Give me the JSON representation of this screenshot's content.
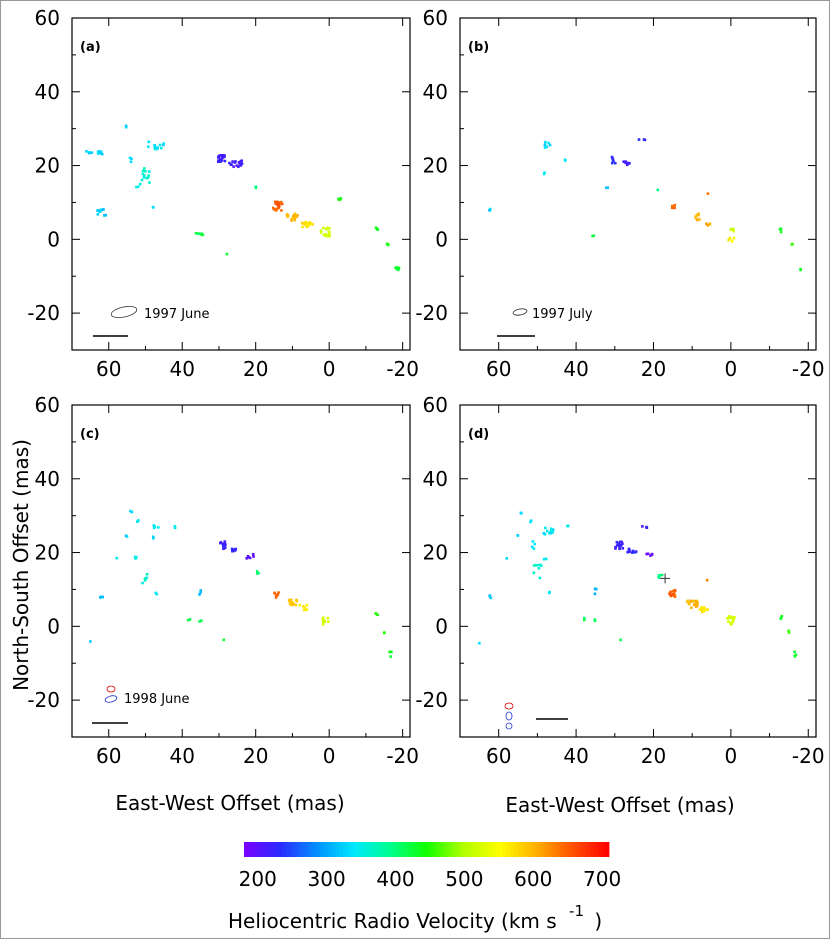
{
  "figure": {
    "ylabel": "North-South Offset (mas)",
    "xlabel": "East-West Offset (mas)",
    "colorbar_title": "Heliocentric Radio Velocity (km s",
    "colorbar_title_exp": "-1",
    "colorbar_title_close": ")"
  },
  "chart_data": {
    "type": "scatter",
    "xlim": [
      70,
      -22
    ],
    "ylim": [
      -30,
      60
    ],
    "xticks": [
      "60",
      "40",
      "20",
      "0",
      "-20"
    ],
    "xtick_values": [
      60,
      40,
      20,
      0,
      -20
    ],
    "yticks": [
      "60",
      "40",
      "20",
      "0",
      "-20"
    ],
    "ytick_values": [
      60,
      40,
      20,
      0,
      -20
    ],
    "colorbar": {
      "vmin": 180,
      "vmax": 710,
      "ticks": [
        "200",
        "300",
        "400",
        "500",
        "600",
        "700"
      ],
      "tick_values": [
        200,
        300,
        400,
        500,
        600,
        700
      ],
      "colors": [
        "#7a00ff",
        "#2a2aff",
        "#0090ff",
        "#00e8ff",
        "#00ff90",
        "#10ff00",
        "#b0ff00",
        "#ffff00",
        "#ffb000",
        "#ff5000",
        "#ff0000"
      ]
    },
    "panels": [
      {
        "label": "(a)",
        "epoch": "1997  June",
        "beam": "ellipse",
        "clusters": [
          {
            "x": 64,
            "y": 23.5,
            "v": 330,
            "n": 10,
            "sx": 2.4,
            "sy": 0.4
          },
          {
            "x": 55,
            "y": 30.5,
            "v": 330,
            "n": 2,
            "sx": 0.3,
            "sy": 0.3
          },
          {
            "x": 47,
            "y": 25.5,
            "v": 340,
            "n": 14,
            "sx": 2.5,
            "sy": 1.2
          },
          {
            "x": 50,
            "y": 17.5,
            "v": 360,
            "n": 12,
            "sx": 1.2,
            "sy": 2.2
          },
          {
            "x": 54,
            "y": 21.5,
            "v": 340,
            "n": 3,
            "sx": 0.4,
            "sy": 0.6
          },
          {
            "x": 48,
            "y": 8.5,
            "v": 340,
            "n": 2,
            "sx": 0.4,
            "sy": 0.4
          },
          {
            "x": 52,
            "y": 14.5,
            "v": 350,
            "n": 3,
            "sx": 0.6,
            "sy": 0.6
          },
          {
            "x": 62,
            "y": 7.5,
            "v": 320,
            "n": 10,
            "sx": 1.2,
            "sy": 1.3
          },
          {
            "x": 29,
            "y": 22,
            "v": 220,
            "n": 18,
            "sx": 1.4,
            "sy": 1.0
          },
          {
            "x": 25.5,
            "y": 20.5,
            "v": 220,
            "n": 16,
            "sx": 1.8,
            "sy": 0.9
          },
          {
            "x": 20,
            "y": 14,
            "v": 400,
            "n": 3,
            "sx": 0.3,
            "sy": 0.4
          },
          {
            "x": 35.5,
            "y": 1.5,
            "v": 420,
            "n": 6,
            "sx": 1.3,
            "sy": 0.3
          },
          {
            "x": 14,
            "y": 9,
            "v": 650,
            "n": 18,
            "sx": 1.3,
            "sy": 1.3
          },
          {
            "x": 10,
            "y": 6,
            "v": 600,
            "n": 16,
            "sx": 1.5,
            "sy": 1.0
          },
          {
            "x": 6,
            "y": 4,
            "v": 570,
            "n": 16,
            "sx": 1.5,
            "sy": 0.7
          },
          {
            "x": 1,
            "y": 2,
            "v": 520,
            "n": 16,
            "sx": 1.3,
            "sy": 1.2
          },
          {
            "x": -3,
            "y": 11,
            "v": 440,
            "n": 4,
            "sx": 0.5,
            "sy": 0.4
          },
          {
            "x": -13,
            "y": 3,
            "v": 440,
            "n": 3,
            "sx": 0.4,
            "sy": 0.5
          },
          {
            "x": -16,
            "y": -1.5,
            "v": 450,
            "n": 2,
            "sx": 0.3,
            "sy": 0.3
          },
          {
            "x": -18.5,
            "y": -8,
            "v": 430,
            "n": 6,
            "sx": 0.5,
            "sy": 0.6
          },
          {
            "x": 28,
            "y": -4,
            "v": 430,
            "n": 1,
            "sx": 0.2,
            "sy": 0.2
          }
        ]
      },
      {
        "label": "(b)",
        "epoch": "1997  July",
        "beam": "small",
        "clusters": [
          {
            "x": 47,
            "y": 25.5,
            "v": 330,
            "n": 8,
            "sx": 1.2,
            "sy": 1.0
          },
          {
            "x": 43,
            "y": 21.5,
            "v": 330,
            "n": 2,
            "sx": 0.3,
            "sy": 0.3
          },
          {
            "x": 48,
            "y": 18,
            "v": 340,
            "n": 2,
            "sx": 0.3,
            "sy": 0.3
          },
          {
            "x": 62,
            "y": 8,
            "v": 320,
            "n": 3,
            "sx": 0.4,
            "sy": 0.3
          },
          {
            "x": 30,
            "y": 21.5,
            "v": 230,
            "n": 6,
            "sx": 0.8,
            "sy": 1.0
          },
          {
            "x": 27,
            "y": 20.5,
            "v": 220,
            "n": 6,
            "sx": 0.8,
            "sy": 0.6
          },
          {
            "x": 23,
            "y": 27,
            "v": 220,
            "n": 3,
            "sx": 0.8,
            "sy": 0.3
          },
          {
            "x": 32,
            "y": 14,
            "v": 310,
            "n": 2,
            "sx": 0.3,
            "sy": 0.3
          },
          {
            "x": 35.5,
            "y": 1,
            "v": 420,
            "n": 2,
            "sx": 0.3,
            "sy": 0.3
          },
          {
            "x": 19,
            "y": 13.5,
            "v": 400,
            "n": 1,
            "sx": 0.2,
            "sy": 0.2
          },
          {
            "x": 15,
            "y": 9,
            "v": 650,
            "n": 6,
            "sx": 0.8,
            "sy": 0.5
          },
          {
            "x": 9,
            "y": 6,
            "v": 600,
            "n": 8,
            "sx": 1.0,
            "sy": 1.0
          },
          {
            "x": 6,
            "y": 4,
            "v": 610,
            "n": 4,
            "sx": 0.8,
            "sy": 0.5
          },
          {
            "x": 6,
            "y": 12.5,
            "v": 630,
            "n": 1,
            "sx": 0.2,
            "sy": 0.2
          },
          {
            "x": 0,
            "y": 0,
            "v": 560,
            "n": 6,
            "sx": 0.8,
            "sy": 0.6
          },
          {
            "x": 0,
            "y": 2.5,
            "v": 520,
            "n": 4,
            "sx": 0.8,
            "sy": 0.4
          },
          {
            "x": -13,
            "y": 2.5,
            "v": 440,
            "n": 3,
            "sx": 0.4,
            "sy": 0.5
          },
          {
            "x": -16,
            "y": -1.5,
            "v": 450,
            "n": 2,
            "sx": 0.3,
            "sy": 0.3
          },
          {
            "x": -18,
            "y": -8,
            "v": 430,
            "n": 2,
            "sx": 0.3,
            "sy": 0.4
          }
        ]
      },
      {
        "label": "(c)",
        "epoch": "1998  June",
        "beam": "double",
        "clusters": [
          {
            "x": 54,
            "y": 31,
            "v": 340,
            "n": 2,
            "sx": 0.3,
            "sy": 0.4
          },
          {
            "x": 52,
            "y": 28.5,
            "v": 340,
            "n": 2,
            "sx": 0.4,
            "sy": 0.3
          },
          {
            "x": 47,
            "y": 27,
            "v": 340,
            "n": 4,
            "sx": 0.8,
            "sy": 0.5
          },
          {
            "x": 42,
            "y": 27,
            "v": 340,
            "n": 2,
            "sx": 0.3,
            "sy": 0.3
          },
          {
            "x": 48,
            "y": 24,
            "v": 330,
            "n": 2,
            "sx": 0.3,
            "sy": 0.3
          },
          {
            "x": 55,
            "y": 24.5,
            "v": 330,
            "n": 2,
            "sx": 0.3,
            "sy": 0.3
          },
          {
            "x": 52,
            "y": 18.5,
            "v": 350,
            "n": 4,
            "sx": 1.0,
            "sy": 0.5
          },
          {
            "x": 50,
            "y": 13.5,
            "v": 360,
            "n": 6,
            "sx": 1.0,
            "sy": 2.0
          },
          {
            "x": 47,
            "y": 9,
            "v": 340,
            "n": 2,
            "sx": 0.4,
            "sy": 0.3
          },
          {
            "x": 58,
            "y": 18.5,
            "v": 340,
            "n": 1,
            "sx": 0.2,
            "sy": 0.2
          },
          {
            "x": 62,
            "y": 8,
            "v": 320,
            "n": 3,
            "sx": 0.4,
            "sy": 0.6
          },
          {
            "x": 65,
            "y": -4,
            "v": 330,
            "n": 1,
            "sx": 0.2,
            "sy": 0.2
          },
          {
            "x": 35,
            "y": 9,
            "v": 310,
            "n": 3,
            "sx": 0.3,
            "sy": 1.3
          },
          {
            "x": 38,
            "y": 2,
            "v": 410,
            "n": 2,
            "sx": 0.4,
            "sy": 0.3
          },
          {
            "x": 35,
            "y": 1.5,
            "v": 420,
            "n": 2,
            "sx": 0.3,
            "sy": 0.3
          },
          {
            "x": 29,
            "y": 22,
            "v": 220,
            "n": 12,
            "sx": 0.9,
            "sy": 1.0
          },
          {
            "x": 26,
            "y": 20.5,
            "v": 230,
            "n": 6,
            "sx": 0.8,
            "sy": 0.5
          },
          {
            "x": 21.5,
            "y": 19,
            "v": 200,
            "n": 6,
            "sx": 1.0,
            "sy": 0.6
          },
          {
            "x": 19.5,
            "y": 14.5,
            "v": 400,
            "n": 3,
            "sx": 0.4,
            "sy": 0.6
          },
          {
            "x": 14.5,
            "y": 8.5,
            "v": 650,
            "n": 8,
            "sx": 0.8,
            "sy": 0.7
          },
          {
            "x": 10,
            "y": 6.5,
            "v": 590,
            "n": 12,
            "sx": 1.2,
            "sy": 0.8
          },
          {
            "x": 7,
            "y": 5,
            "v": 560,
            "n": 8,
            "sx": 1.0,
            "sy": 0.8
          },
          {
            "x": 1,
            "y": 1.5,
            "v": 520,
            "n": 10,
            "sx": 0.8,
            "sy": 1.0
          },
          {
            "x": 28.5,
            "y": -3.5,
            "v": 430,
            "n": 1,
            "sx": 0.2,
            "sy": 0.2
          },
          {
            "x": -13,
            "y": 3,
            "v": 440,
            "n": 3,
            "sx": 0.4,
            "sy": 0.5
          },
          {
            "x": -15,
            "y": -1.5,
            "v": 450,
            "n": 2,
            "sx": 0.3,
            "sy": 0.3
          },
          {
            "x": -16.5,
            "y": -7.5,
            "v": 430,
            "n": 4,
            "sx": 0.5,
            "sy": 0.8
          }
        ]
      },
      {
        "label": "(d)",
        "epoch": "",
        "beam": "triple",
        "clusters": [
          {
            "x": 54,
            "y": 31,
            "v": 340,
            "n": 2,
            "sx": 0.3,
            "sy": 0.4
          },
          {
            "x": 52,
            "y": 28.5,
            "v": 340,
            "n": 2,
            "sx": 0.4,
            "sy": 0.3
          },
          {
            "x": 47,
            "y": 25.5,
            "v": 340,
            "n": 12,
            "sx": 1.5,
            "sy": 1.2
          },
          {
            "x": 42,
            "y": 27,
            "v": 340,
            "n": 2,
            "sx": 0.3,
            "sy": 0.3
          },
          {
            "x": 51,
            "y": 22,
            "v": 340,
            "n": 4,
            "sx": 0.5,
            "sy": 1.0
          },
          {
            "x": 55,
            "y": 24.5,
            "v": 330,
            "n": 2,
            "sx": 0.3,
            "sy": 0.3
          },
          {
            "x": 50,
            "y": 15,
            "v": 360,
            "n": 8,
            "sx": 1.2,
            "sy": 2.2
          },
          {
            "x": 47,
            "y": 9,
            "v": 340,
            "n": 2,
            "sx": 0.4,
            "sy": 0.3
          },
          {
            "x": 48,
            "y": 18,
            "v": 340,
            "n": 2,
            "sx": 0.3,
            "sy": 0.3
          },
          {
            "x": 58,
            "y": 18.5,
            "v": 340,
            "n": 1,
            "sx": 0.2,
            "sy": 0.2
          },
          {
            "x": 62,
            "y": 8,
            "v": 320,
            "n": 3,
            "sx": 0.4,
            "sy": 0.6
          },
          {
            "x": 65,
            "y": -4.5,
            "v": 330,
            "n": 1,
            "sx": 0.2,
            "sy": 0.2
          },
          {
            "x": 35,
            "y": 9,
            "v": 310,
            "n": 4,
            "sx": 0.3,
            "sy": 1.3
          },
          {
            "x": 38,
            "y": 2,
            "v": 410,
            "n": 2,
            "sx": 0.4,
            "sy": 0.3
          },
          {
            "x": 35,
            "y": 1.5,
            "v": 420,
            "n": 2,
            "sx": 0.3,
            "sy": 0.3
          },
          {
            "x": 29,
            "y": 22,
            "v": 220,
            "n": 16,
            "sx": 1.2,
            "sy": 1.0
          },
          {
            "x": 25.5,
            "y": 20.5,
            "v": 230,
            "n": 10,
            "sx": 1.2,
            "sy": 0.6
          },
          {
            "x": 22.5,
            "y": 27,
            "v": 220,
            "n": 3,
            "sx": 0.8,
            "sy": 0.3
          },
          {
            "x": 21,
            "y": 19.5,
            "v": 200,
            "n": 5,
            "sx": 0.8,
            "sy": 0.5
          },
          {
            "x": 18,
            "y": 14,
            "v": 400,
            "n": 6,
            "sx": 0.8,
            "sy": 0.8
          },
          {
            "x": 15,
            "y": 9,
            "v": 650,
            "n": 14,
            "sx": 1.2,
            "sy": 1.0
          },
          {
            "x": 10,
            "y": 6,
            "v": 600,
            "n": 16,
            "sx": 1.4,
            "sy": 1.0
          },
          {
            "x": 7,
            "y": 4.5,
            "v": 570,
            "n": 10,
            "sx": 1.0,
            "sy": 0.7
          },
          {
            "x": 6,
            "y": 12.5,
            "v": 630,
            "n": 1,
            "sx": 0.2,
            "sy": 0.2
          },
          {
            "x": 0,
            "y": 1.5,
            "v": 520,
            "n": 14,
            "sx": 1.0,
            "sy": 1.2
          },
          {
            "x": 28.5,
            "y": -3.5,
            "v": 430,
            "n": 1,
            "sx": 0.2,
            "sy": 0.2
          },
          {
            "x": -13,
            "y": 2.5,
            "v": 440,
            "n": 3,
            "sx": 0.4,
            "sy": 0.5
          },
          {
            "x": -15,
            "y": -1.5,
            "v": 450,
            "n": 2,
            "sx": 0.3,
            "sy": 0.3
          },
          {
            "x": -16.5,
            "y": -7.5,
            "v": 430,
            "n": 4,
            "sx": 0.5,
            "sy": 0.8
          }
        ],
        "markers": [
          {
            "type": "cross",
            "x": 17,
            "y": 13
          }
        ]
      }
    ]
  }
}
